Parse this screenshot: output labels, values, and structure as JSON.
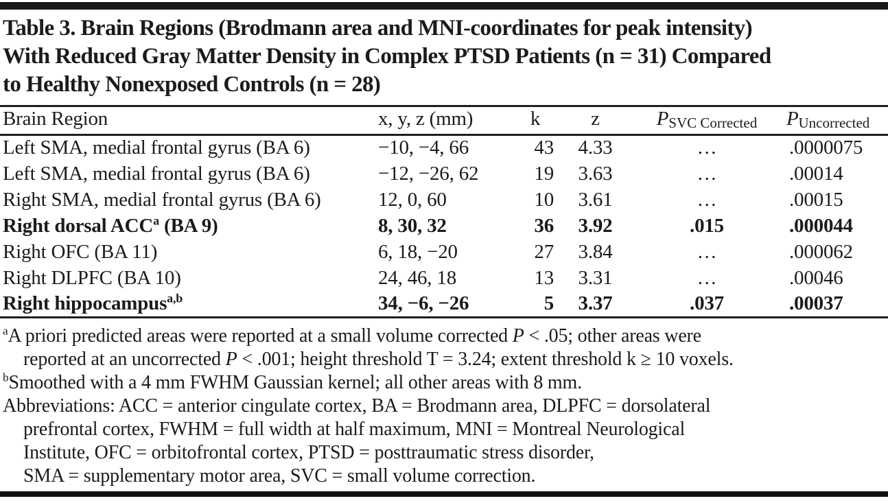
{
  "title_lines": [
    "Table 3. Brain Regions (Brodmann area and MNI-coordinates for peak intensity)",
    "With Reduced Gray Matter Density in Complex PTSD Patients (n = 31) Compared",
    "to Healthy Nonexposed Controls (n = 28)"
  ],
  "table": {
    "headers": {
      "brain_region": "Brain Region",
      "coords": "x, y, z (mm)",
      "k": "k",
      "z": "z",
      "p_svc": {
        "symbol": "P",
        "sub": "SVC Corrected"
      },
      "p_unc": {
        "symbol": "P",
        "sub": "Uncorrected"
      }
    },
    "rows": [
      {
        "region_pre": "Left SMA, medial frontal gyrus (BA 6)",
        "region_sup": "",
        "region_post": "",
        "coords": "−10, −4, 66",
        "k": "43",
        "z": "4.33",
        "p_svc": "…",
        "p_unc": ".0000075",
        "bold": false
      },
      {
        "region_pre": "Left SMA, medial frontal gyrus (BA 6)",
        "region_sup": "",
        "region_post": "",
        "coords": "−12, −26, 62",
        "k": "19",
        "z": "3.63",
        "p_svc": "…",
        "p_unc": ".00014",
        "bold": false
      },
      {
        "region_pre": "Right SMA, medial frontal gyrus (BA 6)",
        "region_sup": "",
        "region_post": "",
        "coords": "12, 0, 60",
        "k": "10",
        "z": "3.61",
        "p_svc": "…",
        "p_unc": ".00015",
        "bold": false
      },
      {
        "region_pre": "Right dorsal ACC",
        "region_sup": "a",
        "region_post": " (BA 9)",
        "coords": "8, 30, 32",
        "k": "36",
        "z": "3.92",
        "p_svc": ".015",
        "p_unc": ".000044",
        "bold": true
      },
      {
        "region_pre": "Right OFC (BA 11)",
        "region_sup": "",
        "region_post": "",
        "coords": "6, 18, −20",
        "k": "27",
        "z": "3.84",
        "p_svc": "…",
        "p_unc": ".000062",
        "bold": false
      },
      {
        "region_pre": "Right DLPFC (BA 10)",
        "region_sup": "",
        "region_post": "",
        "coords": "24, 46, 18",
        "k": "13",
        "z": "3.31",
        "p_svc": "…",
        "p_unc": ".00046",
        "bold": false
      },
      {
        "region_pre": "Right hippocampus",
        "region_sup": "a,b",
        "region_post": "",
        "coords": "34, −6, −26",
        "k": "5",
        "z": "3.37",
        "p_svc": ".037",
        "p_unc": ".00037",
        "bold": true
      }
    ]
  },
  "footnotes": {
    "a": {
      "marker": "a",
      "line1_t1": "A priori predicted areas were reported at a small volume corrected ",
      "line1_i1": "P",
      "line1_t2": " < .05; other areas were",
      "line2_t1": "reported at an uncorrected ",
      "line2_i1": "P",
      "line2_t2": " < .001; height threshold T = 3.24; extent threshold k ≥ 10 voxels."
    },
    "b": {
      "marker": "b",
      "text": "Smoothed with a 4 mm FWHM Gaussian kernel; all other areas with 8 mm."
    },
    "abbreviations_lines": [
      "Abbreviations: ACC = anterior cingulate cortex, BA = Brodmann area, DLPFC = dorsolateral",
      "prefrontal cortex, FWHM = full width at half maximum, MNI = Montreal Neurological",
      "Institute, OFC = orbitofrontal cortex, PTSD = posttraumatic stress disorder,",
      "SMA = supplementary motor area, SVC = small volume correction."
    ]
  }
}
